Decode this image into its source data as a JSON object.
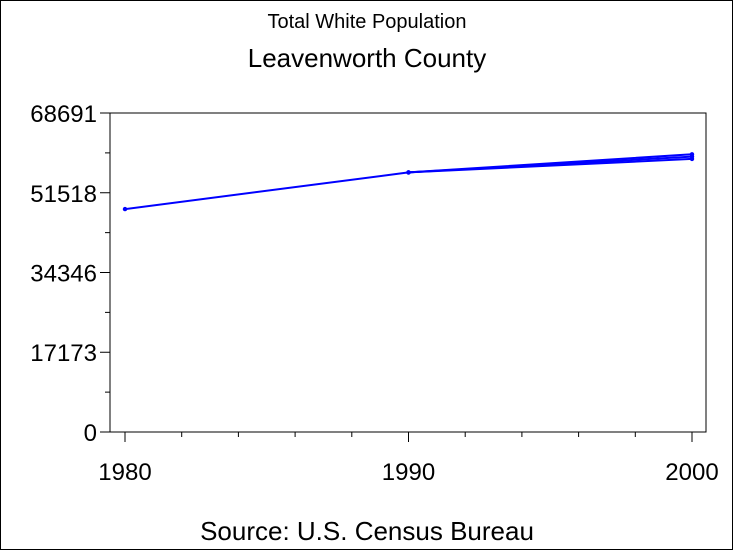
{
  "chart_data": {
    "type": "line",
    "title": "Total White Population",
    "subtitle": "Leavenworth County",
    "footnote": "Source: U.S. Census Bureau",
    "xlabel": "",
    "ylabel": "",
    "x_ticks": [
      1980,
      1990,
      2000
    ],
    "x_minor_step": 2,
    "xlim": [
      1980,
      2000
    ],
    "y_ticks": [
      "0",
      "17173",
      "34346",
      "51518",
      "68691"
    ],
    "y_tick_values": [
      0,
      17173,
      34346,
      51518,
      68691
    ],
    "ylim": [
      0,
      68691
    ],
    "y_minor_step": 8586,
    "line_color": "#0000ff",
    "series": [
      {
        "values": [
          {
            "x": 1980,
            "y": 48000
          },
          {
            "x": 1990,
            "y": 55900
          },
          {
            "x": 2000,
            "y": 59800
          }
        ]
      },
      {
        "values": [
          {
            "x": 1990,
            "y": 55900
          },
          {
            "x": 2000,
            "y": 59300
          }
        ]
      },
      {
        "values": [
          {
            "x": 1990,
            "y": 55900
          },
          {
            "x": 2000,
            "y": 58800
          }
        ]
      }
    ]
  }
}
